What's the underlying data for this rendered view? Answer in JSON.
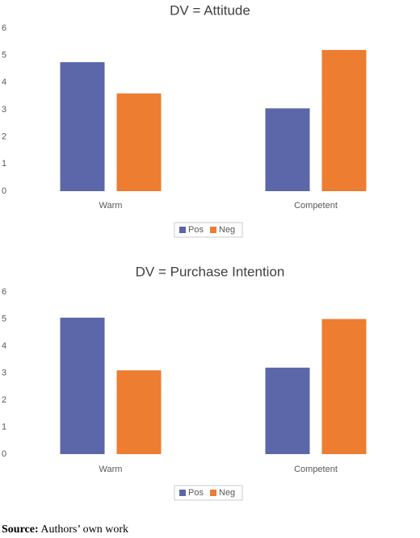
{
  "chart_data": [
    {
      "type": "bar",
      "title": "DV = Attitude",
      "categories": [
        "Warm",
        "Competent"
      ],
      "series": [
        {
          "name": "Pos",
          "color": "#5b67a8",
          "values": [
            4.75,
            3.05
          ]
        },
        {
          "name": "Neg",
          "color": "#ed7d31",
          "values": [
            3.6,
            5.2
          ]
        }
      ],
      "ylim": [
        0,
        6
      ],
      "yticks": [
        0,
        1,
        2,
        3,
        4,
        5,
        6
      ],
      "grid": false,
      "legend": "bottom"
    },
    {
      "type": "bar",
      "title": "DV = Purchase Intention",
      "categories": [
        "Warm",
        "Competent"
      ],
      "series": [
        {
          "name": "Pos",
          "color": "#5b67a8",
          "values": [
            5.05,
            3.2
          ]
        },
        {
          "name": "Neg",
          "color": "#ed7d31",
          "values": [
            3.1,
            5.0
          ]
        }
      ],
      "ylim": [
        0,
        6
      ],
      "yticks": [
        0,
        1,
        2,
        3,
        4,
        5,
        6
      ],
      "grid": false,
      "legend": "bottom"
    }
  ],
  "source": {
    "label": "Source:",
    "text": "Authors’ own work"
  }
}
